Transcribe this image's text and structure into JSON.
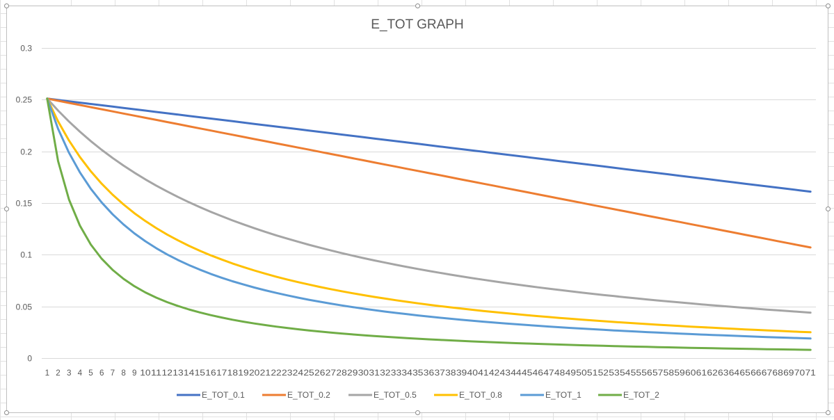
{
  "chart_data": {
    "type": "line",
    "title": "E_TOT GRAPH",
    "xlabel": "",
    "ylabel": "",
    "x_start": 1,
    "x_end": 71,
    "ylim": [
      0,
      0.3
    ],
    "yticks": [
      "0",
      "0.05",
      "0.1",
      "0.15",
      "0.2",
      "0.25",
      "0.3"
    ],
    "grid": "horizontal",
    "legend_position": "bottom",
    "series": [
      {
        "name": "E_TOT_0.1",
        "color": "#4472C4",
        "y_first": 0.251,
        "y_last": 0.161,
        "decay": "linear"
      },
      {
        "name": "E_TOT_0.2",
        "color": "#ED7D31",
        "y_first": 0.251,
        "y_last": 0.107,
        "decay": "linear"
      },
      {
        "name": "E_TOT_0.5",
        "color": "#A5A5A5",
        "y_first": 0.251,
        "y_last": 0.044,
        "decay": "hyperbolic",
        "y_mid": 0.103,
        "x_mid": 31
      },
      {
        "name": "E_TOT_0.8",
        "color": "#FFC000",
        "y_first": 0.251,
        "y_last": 0.025,
        "decay": "hyperbolic",
        "y_mid": 0.065,
        "x_mid": 31
      },
      {
        "name": "E_TOT_1",
        "color": "#5B9BD5",
        "y_first": 0.251,
        "y_last": 0.019,
        "decay": "hyperbolic",
        "y_mid": 0.051,
        "x_mid": 31
      },
      {
        "name": "E_TOT_2",
        "color": "#70AD47",
        "y_first": 0.251,
        "y_last": 0.008,
        "decay": "hyperbolic",
        "y_mid": 0.024,
        "x_mid": 31
      }
    ]
  }
}
